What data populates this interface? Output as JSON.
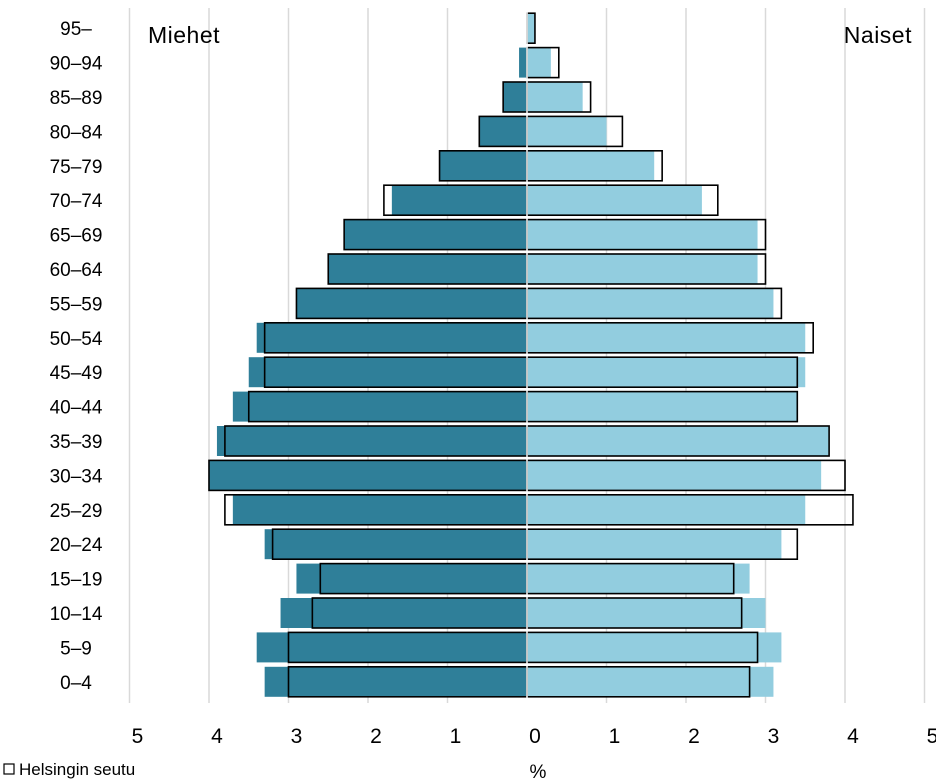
{
  "chart_data": {
    "type": "bar",
    "orientation": "horizontal-population-pyramid",
    "categories": [
      "0–4",
      "5–9",
      "10–14",
      "15–19",
      "20–24",
      "25–29",
      "30–34",
      "35–39",
      "40–44",
      "45–49",
      "50–54",
      "55–59",
      "60–64",
      "65–69",
      "70–74",
      "75–79",
      "80–84",
      "85–89",
      "90–94",
      "95–"
    ],
    "left_label": "Miehet",
    "right_label": "Naiset",
    "xlabel": "%",
    "x_ticks": [
      "5",
      "4",
      "3",
      "2",
      "1",
      "0",
      "1",
      "2",
      "3",
      "4",
      "5"
    ],
    "xlim": [
      -5,
      5
    ],
    "legend": {
      "placement": "bottom-left",
      "entries": [
        "Helsingin seutu"
      ]
    },
    "grid": true,
    "series": [
      {
        "side": "male",
        "style": "filled",
        "color": "#2f7f99",
        "values": [
          3.3,
          3.4,
          3.1,
          2.9,
          3.3,
          3.7,
          4.0,
          3.9,
          3.7,
          3.5,
          3.4,
          2.9,
          2.5,
          2.3,
          1.7,
          1.1,
          0.6,
          0.3,
          0.1,
          0.0
        ]
      },
      {
        "side": "female",
        "style": "filled",
        "color": "#92cddf",
        "values": [
          3.1,
          3.2,
          3.0,
          2.8,
          3.2,
          3.5,
          3.7,
          3.8,
          3.4,
          3.5,
          3.5,
          3.1,
          2.9,
          2.9,
          2.2,
          1.6,
          1.0,
          0.7,
          0.3,
          0.1
        ]
      },
      {
        "side": "male",
        "style": "outline",
        "name": "Helsingin seutu",
        "values": [
          3.0,
          3.0,
          2.7,
          2.6,
          3.2,
          3.8,
          4.0,
          3.8,
          3.5,
          3.3,
          3.3,
          2.9,
          2.5,
          2.3,
          1.8,
          1.1,
          0.6,
          0.3,
          0.0,
          0.0
        ]
      },
      {
        "side": "female",
        "style": "outline",
        "name": "Helsingin seutu",
        "values": [
          2.8,
          2.9,
          2.7,
          2.6,
          3.4,
          4.1,
          4.0,
          3.8,
          3.4,
          3.4,
          3.6,
          3.2,
          3.0,
          3.0,
          2.4,
          1.7,
          1.2,
          0.8,
          0.4,
          0.1
        ]
      }
    ]
  }
}
